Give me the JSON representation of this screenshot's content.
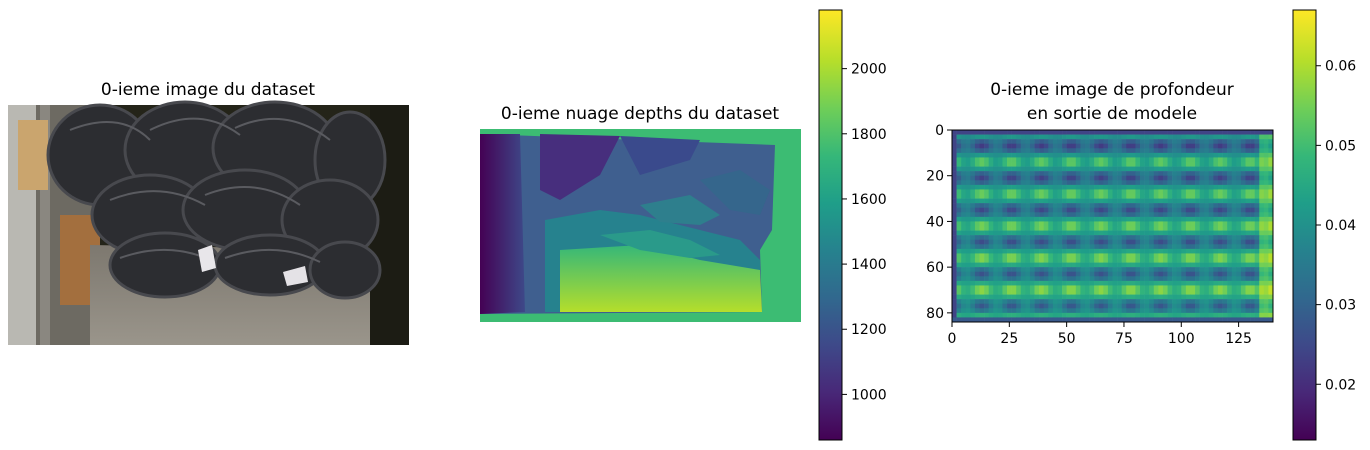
{
  "chart_data": [
    {
      "type": "image",
      "title": "0-ieme image du dataset",
      "content": "rgb-photo-tires",
      "axes_visible": false
    },
    {
      "type": "heatmap",
      "title": "0-ieme nuage depths du dataset",
      "colormap": "viridis",
      "axes_visible": false,
      "colorbar": {
        "vmin": 860,
        "vmax": 2180,
        "ticks": [
          1000,
          1200,
          1400,
          1600,
          1800,
          2000
        ],
        "tick_labels": [
          "1000",
          "1200",
          "1400",
          "1600",
          "1800",
          "2000"
        ]
      }
    },
    {
      "type": "heatmap",
      "title_lines": [
        "0-ieme image de profondeur",
        "en sortie de modele"
      ],
      "colormap": "viridis",
      "rows": 84,
      "cols": 140,
      "xlim": [
        0,
        140
      ],
      "ylim": [
        84,
        0
      ],
      "xticks": [
        0,
        25,
        50,
        75,
        100,
        125
      ],
      "xtick_labels": [
        "0",
        "25",
        "50",
        "75",
        "100",
        "125"
      ],
      "yticks": [
        0,
        20,
        40,
        60,
        80
      ],
      "ytick_labels": [
        "0",
        "20",
        "40",
        "60",
        "80"
      ],
      "colorbar": {
        "vmin": 0.013,
        "vmax": 0.067,
        "ticks": [
          0.02,
          0.03,
          0.04,
          0.05,
          0.06
        ],
        "tick_labels": [
          "0.02",
          "0.03",
          "0.04",
          "0.05",
          "0.06"
        ]
      }
    }
  ],
  "colors": {
    "viridis": [
      "#440154",
      "#482878",
      "#3e4989",
      "#31688e",
      "#26828e",
      "#1f9e89",
      "#35b779",
      "#6ece58",
      "#b5de2b",
      "#fde725"
    ],
    "photo_background": "#2a2a1e",
    "photo_floor": "#8f8a80",
    "tire": "#2e2f33"
  }
}
